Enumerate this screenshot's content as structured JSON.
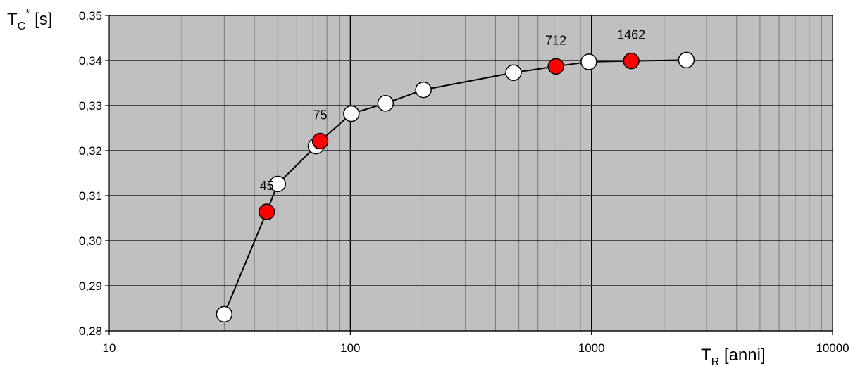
{
  "chart_data": {
    "type": "scatter",
    "title": "",
    "xlabel": {
      "main": "T",
      "sub": "R",
      "rest": " [anni]"
    },
    "ylabel": {
      "main": "T",
      "sub": "C",
      "sup": "*",
      "rest": " [s]"
    },
    "xscale": "log",
    "xlim": [
      10,
      10000
    ],
    "ylim": [
      0.28,
      0.35
    ],
    "xticks": [
      10,
      100,
      1000,
      10000
    ],
    "xtick_labels": [
      "10",
      "100",
      "1000",
      "10000"
    ],
    "yticks": [
      0.28,
      0.29,
      0.3,
      0.31,
      0.32,
      0.33,
      0.34,
      0.35
    ],
    "ytick_labels": [
      "0,28",
      "0,29",
      "0,30",
      "0,31",
      "0,32",
      "0,33",
      "0,34",
      "0,35"
    ],
    "grid": true,
    "colors": {
      "plot_background": "#c0c0c0",
      "grid": "#000000",
      "line": "#000000",
      "highlight_point": "#ff0000",
      "normal_point": "#ffffff"
    },
    "series": [
      {
        "style": "line-with-markers",
        "x": [
          30,
          45,
          50,
          72,
          75,
          101,
          140,
          201,
          475,
          712,
          975,
          1462,
          2475
        ],
        "y": [
          0.2837,
          0.3064,
          0.3126,
          0.321,
          0.3221,
          0.3282,
          0.3305,
          0.3335,
          0.3373,
          0.3387,
          0.3397,
          0.3399,
          0.3401
        ],
        "highlighted": [
          false,
          true,
          false,
          false,
          true,
          false,
          false,
          false,
          false,
          true,
          false,
          true,
          false
        ]
      }
    ],
    "annotations": [
      {
        "text": "45",
        "x": 45
      },
      {
        "text": "75",
        "x": 75
      },
      {
        "text": "712",
        "x": 712
      },
      {
        "text": "1462",
        "x": 1462
      }
    ]
  }
}
